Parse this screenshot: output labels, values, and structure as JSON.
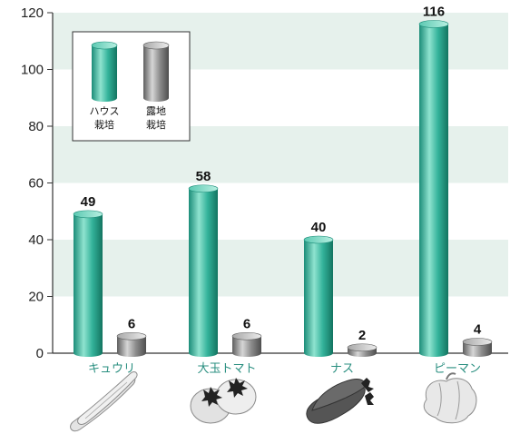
{
  "chart_data": {
    "type": "bar",
    "categories": [
      "キュウリ",
      "大玉トマト",
      "ナス",
      "ピーマン"
    ],
    "series": [
      {
        "name": "ハウス栽培",
        "legend_lines": [
          "ハウス",
          "栽培"
        ],
        "values": [
          49,
          58,
          40,
          116
        ],
        "color": "#2fae96"
      },
      {
        "name": "露地栽培",
        "legend_lines": [
          "露地",
          "栽培"
        ],
        "values": [
          6,
          6,
          2,
          4
        ],
        "color": "#8a8a8a"
      }
    ],
    "ylim": [
      0,
      120
    ],
    "yticks": [
      0,
      20,
      40,
      60,
      80,
      100,
      120
    ],
    "grid": "alternating bands",
    "legend": "top-left",
    "band_color": "#e6f1ec",
    "category_label_color": "#2a8f80"
  }
}
